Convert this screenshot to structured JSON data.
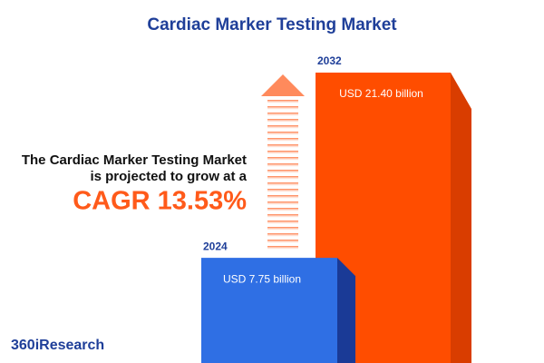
{
  "chart_data": {
    "type": "bar",
    "title": "Cardiac Marker Testing Market",
    "subtitle_lines": [
      "The Cardiac Marker Testing Market",
      "is projected to grow at a"
    ],
    "annotation": "CAGR 13.53%",
    "brand": "360iResearch",
    "categories": [
      "2024",
      "2032"
    ],
    "values": [
      7.75,
      21.4
    ],
    "value_labels": [
      "USD 7.75 billion",
      "USD 21.40 billion"
    ],
    "colors": [
      "#2f6fe4",
      "#ff4d00"
    ]
  }
}
